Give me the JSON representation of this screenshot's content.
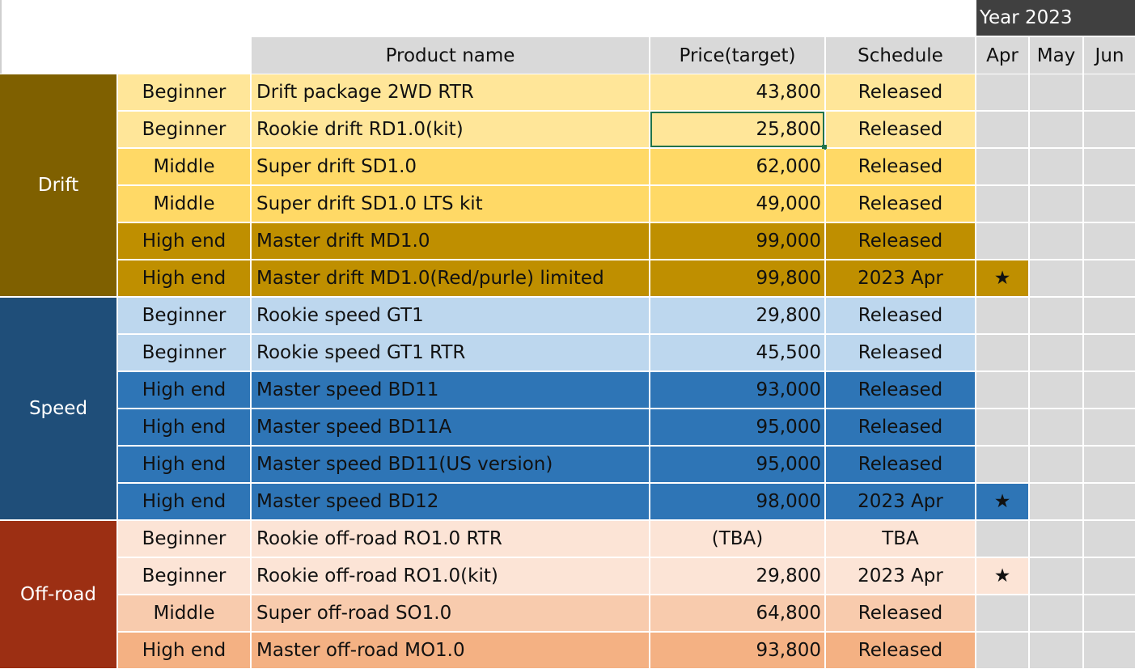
{
  "year_header": "Year 2023",
  "headers": {
    "product": "Product name",
    "price": "Price(target)",
    "schedule": "Schedule",
    "months": [
      "Apr",
      "May",
      "Jun"
    ]
  },
  "categories": [
    {
      "name": "Drift",
      "color": "#7f6000"
    },
    {
      "name": "Speed",
      "color": "#1f4e79"
    },
    {
      "name": "Off-road",
      "color": "#9c2f13"
    }
  ],
  "rows": [
    {
      "level": "Beginner",
      "product": "Drift package 2WD RTR",
      "price": "43,800",
      "schedule": "Released",
      "mark": "",
      "color": "#ffe699"
    },
    {
      "level": "Beginner",
      "product": "Rookie drift RD1.0(kit)",
      "price": "25,800",
      "schedule": "Released",
      "mark": "",
      "color": "#ffe699"
    },
    {
      "level": "Middle",
      "product": "Super drift SD1.0",
      "price": "62,000",
      "schedule": "Released",
      "mark": "",
      "color": "#ffd966"
    },
    {
      "level": "Middle",
      "product": "Super drift SD1.0 LTS kit",
      "price": "49,000",
      "schedule": "Released",
      "mark": "",
      "color": "#ffd966"
    },
    {
      "level": "High end",
      "product": "Master drift MD1.0",
      "price": "99,000",
      "schedule": "Released",
      "mark": "",
      "color": "#bf8f00"
    },
    {
      "level": "High end",
      "product": "Master drift MD1.0(Red/purle) limited",
      "price": "99,800",
      "schedule": "2023 Apr",
      "mark": "★",
      "color": "#bf8f00"
    },
    {
      "level": "Beginner",
      "product": "Rookie speed GT1",
      "price": "29,800",
      "schedule": "Released",
      "mark": "",
      "color": "#bdd7ee"
    },
    {
      "level": "Beginner",
      "product": "Rookie speed GT1 RTR",
      "price": "45,500",
      "schedule": "Released",
      "mark": "",
      "color": "#bdd7ee"
    },
    {
      "level": "High end",
      "product": "Master speed BD11",
      "price": "93,000",
      "schedule": "Released",
      "mark": "",
      "color": "#2e75b6"
    },
    {
      "level": "High end",
      "product": "Master speed BD11A",
      "price": "95,000",
      "schedule": "Released",
      "mark": "",
      "color": "#2e75b6"
    },
    {
      "level": "High end",
      "product": "Master speed BD11(US version)",
      "price": "95,000",
      "schedule": "Released",
      "mark": "",
      "color": "#2e75b6"
    },
    {
      "level": "High end",
      "product": "Master speed BD12",
      "price": "98,000",
      "schedule": "2023 Apr",
      "mark": "★",
      "color": "#2e75b6"
    },
    {
      "level": "Beginner",
      "product": "Rookie off-road RO1.0 RTR",
      "price": "(TBA)",
      "schedule": "TBA",
      "mark": "",
      "color": "#fce4d6"
    },
    {
      "level": "Beginner",
      "product": "Rookie off-road RO1.0(kit)",
      "price": "29,800",
      "schedule": "2023 Apr",
      "mark": "★",
      "color": "#fce4d6"
    },
    {
      "level": "Middle",
      "product": "Super off-road SO1.0",
      "price": "64,800",
      "schedule": "Released",
      "mark": "",
      "color": "#f8cbad"
    },
    {
      "level": "High end",
      "product": "Master off-road MO1.0",
      "price": "93,800",
      "schedule": "Released",
      "mark": "",
      "color": "#f4b183"
    }
  ],
  "month_cell_color": "#d9d9d9"
}
